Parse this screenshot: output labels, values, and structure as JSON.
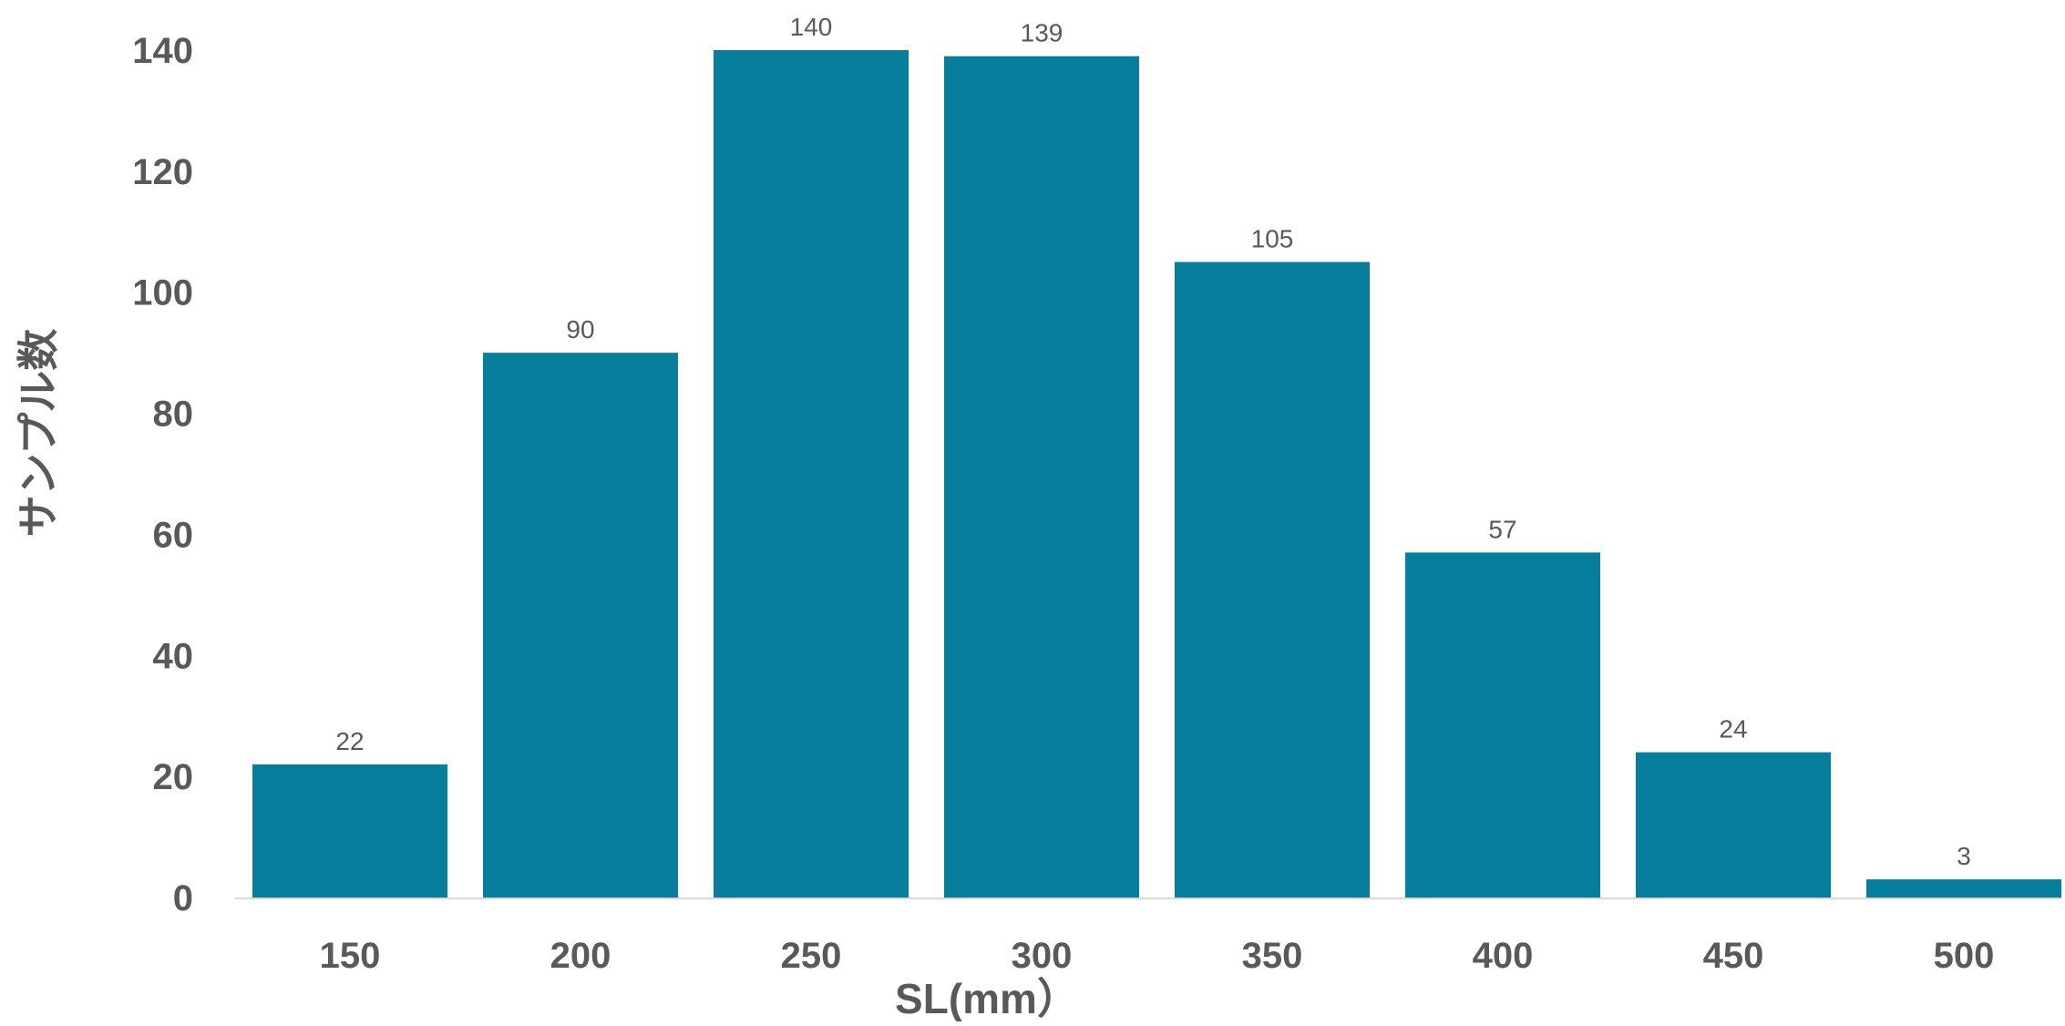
{
  "chart_data": {
    "type": "bar",
    "categories": [
      "150",
      "200",
      "250",
      "300",
      "350",
      "400",
      "450",
      "500"
    ],
    "values": [
      22,
      90,
      140,
      139,
      105,
      57,
      24,
      3
    ],
    "data_labels": [
      "22",
      "90",
      "140",
      "139",
      "105",
      "57",
      "24",
      "3"
    ],
    "title": "",
    "xlabel": "SL(mm）",
    "ylabel": "サンプル数",
    "ylim": [
      0,
      140
    ],
    "yticks": [
      "0",
      "20",
      "40",
      "60",
      "80",
      "100",
      "120",
      "140"
    ],
    "grid": false,
    "legend": "none",
    "colors": {
      "bar": "#077F9C",
      "tick_text": "#595959",
      "data_label_text": "#595959",
      "axis_line": "#D9D9D9"
    }
  }
}
